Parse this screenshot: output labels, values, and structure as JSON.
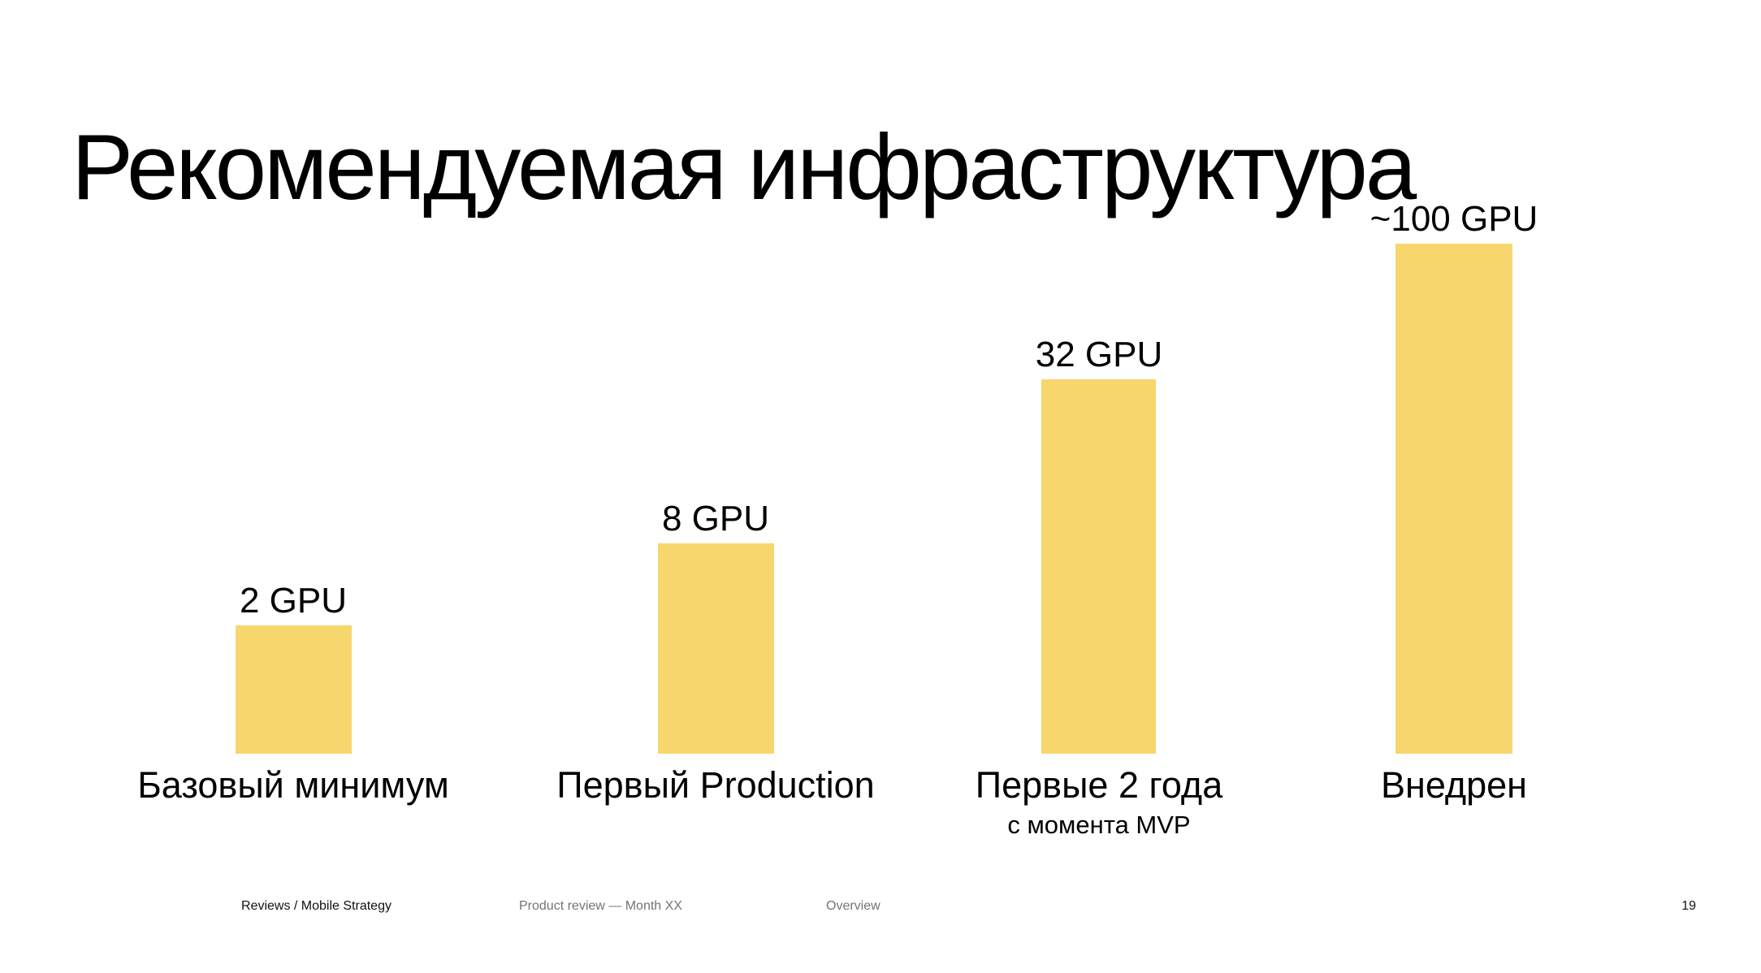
{
  "slide": {
    "title": "Рекомендуемая инфраструктура"
  },
  "chart_data": {
    "type": "bar",
    "title": "Рекомендуемая инфраструктура",
    "unit": "GPU",
    "categories": [
      "Базовый минимум",
      "Первый Production",
      "Первые 2 года",
      "Внедрен"
    ],
    "values": [
      2,
      8,
      32,
      100
    ],
    "bars": [
      {
        "value_label": "2 GPU",
        "category": "Базовый минимум",
        "subcategory": ""
      },
      {
        "value_label": "8 GPU",
        "category": "Первый Production",
        "subcategory": ""
      },
      {
        "value_label": "32 GPU",
        "category": "Первые 2 года",
        "subcategory": "с момента MVP"
      },
      {
        "value_label": "~100 GPU",
        "category": "Внедрен",
        "subcategory": ""
      }
    ],
    "bar_color": "#F7D66E",
    "text_color": "#000000",
    "background": "#FFFFFF",
    "legend": "none",
    "grid": false,
    "axes_visible": false
  },
  "footer": {
    "project": "Reviews / Mobile Strategy",
    "review": "Product review — Month XX",
    "section": "Overview",
    "page_number": "19",
    "muted_color": "#747474"
  }
}
